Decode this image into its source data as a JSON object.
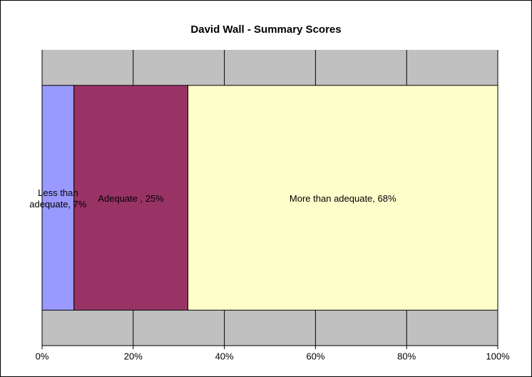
{
  "chart_data": {
    "type": "bar",
    "orientation": "horizontal",
    "stacked": true,
    "title": "David Wall - Summary Scores",
    "categories": [
      null
    ],
    "series": [
      {
        "name": "Less than adequate",
        "color": "#9999ff",
        "values": [
          7
        ],
        "value_labels": [
          "Less than adequate, 7%"
        ]
      },
      {
        "name": "Adequate ",
        "color": "#993366",
        "values": [
          25
        ],
        "value_labels": [
          "Adequate , 25%"
        ]
      },
      {
        "name": "More than adequate",
        "color": "#ffffcc",
        "values": [
          68
        ],
        "value_labels": [
          "More than adequate, 68%"
        ]
      }
    ],
    "xlim": [
      0,
      100
    ],
    "xticks": [
      {
        "value": 0,
        "label": "0%"
      },
      {
        "value": 20,
        "label": "20%"
      },
      {
        "value": 40,
        "label": "40%"
      },
      {
        "value": 60,
        "label": "60%"
      },
      {
        "value": 80,
        "label": "80%"
      },
      {
        "value": 100,
        "label": "100%"
      }
    ],
    "grid": true,
    "plot_background": "#c0c0c0"
  }
}
